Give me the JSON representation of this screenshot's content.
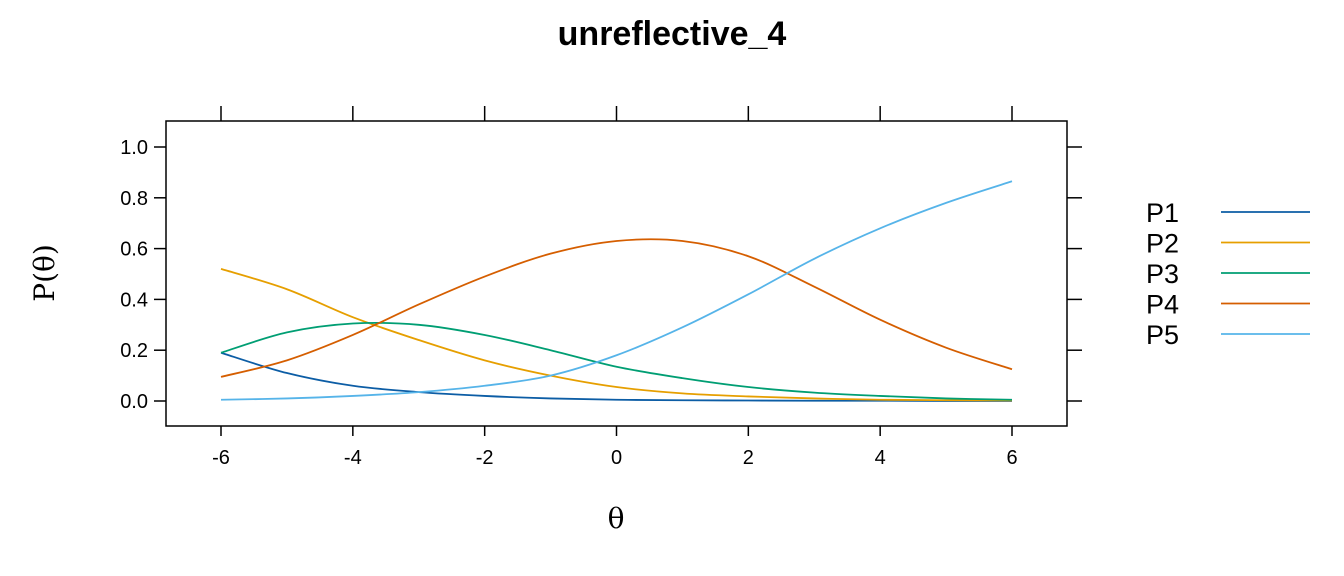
{
  "chart_data": {
    "type": "line",
    "title": "unreflective_4",
    "xlabel": "θ",
    "ylabel": "P(θ)",
    "xlim": [
      -6.8,
      6.8
    ],
    "ylim": [
      -0.1,
      1.1
    ],
    "x_ticks": [
      -6,
      -4,
      -2,
      0,
      2,
      4,
      6
    ],
    "y_ticks": [
      0.0,
      0.2,
      0.4,
      0.6,
      0.8,
      1.0
    ],
    "x_tick_labels": [
      "-6",
      "-4",
      "-2",
      "0",
      "2",
      "4",
      "6"
    ],
    "y_tick_labels": [
      "0.0",
      "0.2",
      "0.4",
      "0.6",
      "0.8",
      "1.0"
    ],
    "grid": false,
    "legend_position": "right",
    "x": [
      -6,
      -5,
      -4,
      -3,
      -2,
      -1,
      0,
      1,
      2,
      3,
      4,
      5,
      6
    ],
    "series": [
      {
        "name": "P1",
        "color": "#0c5da5",
        "values": [
          0.19,
          0.11,
          0.06,
          0.035,
          0.02,
          0.01,
          0.005,
          0.003,
          0.002,
          0.001,
          0.001,
          0.0,
          0.0
        ]
      },
      {
        "name": "P2",
        "color": "#e69f00",
        "values": [
          0.52,
          0.44,
          0.33,
          0.24,
          0.16,
          0.1,
          0.055,
          0.03,
          0.018,
          0.01,
          0.005,
          0.003,
          0.002
        ]
      },
      {
        "name": "P3",
        "color": "#009e73",
        "values": [
          0.19,
          0.27,
          0.305,
          0.3,
          0.26,
          0.2,
          0.135,
          0.09,
          0.055,
          0.033,
          0.02,
          0.01,
          0.005
        ]
      },
      {
        "name": "P4",
        "color": "#d55e00",
        "values": [
          0.095,
          0.16,
          0.26,
          0.38,
          0.49,
          0.58,
          0.63,
          0.63,
          0.57,
          0.45,
          0.32,
          0.21,
          0.125
        ]
      },
      {
        "name": "P5",
        "color": "#56b4e9",
        "values": [
          0.005,
          0.01,
          0.02,
          0.035,
          0.06,
          0.1,
          0.18,
          0.29,
          0.42,
          0.56,
          0.68,
          0.78,
          0.865
        ]
      }
    ]
  }
}
